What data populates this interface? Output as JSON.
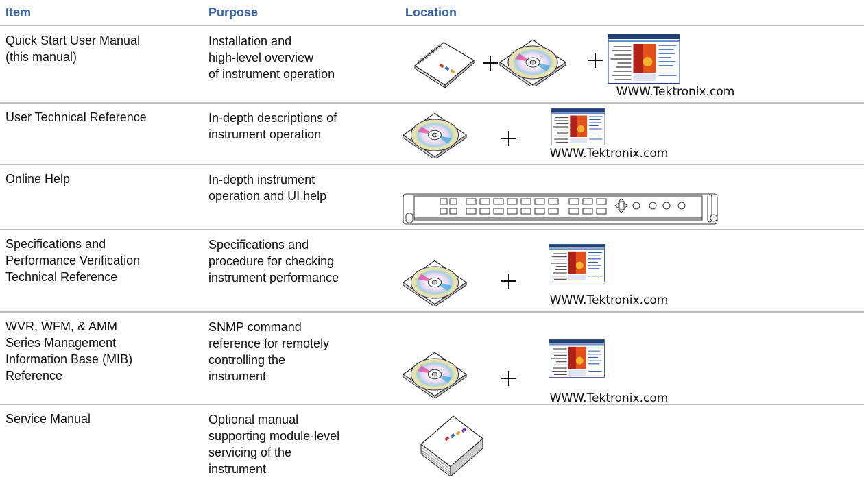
{
  "table": {
    "headers": [
      "Item",
      "Purpose",
      "Location"
    ],
    "rows": [
      {
        "item": [
          "Quick Start User Manual",
          "(this manual)"
        ],
        "purpose": [
          "Installation and",
          "high-level overview",
          "of instrument operation"
        ],
        "caption": "WWW.Tektronix.com"
      },
      {
        "item": [
          "User Technical Reference"
        ],
        "purpose": [
          "In-depth descriptions of",
          "instrument operation"
        ],
        "caption": "WWW.Tektronix.com"
      },
      {
        "item": [
          "Online Help"
        ],
        "purpose": [
          "In-depth instrument",
          "operation and UI help"
        ]
      },
      {
        "item": [
          "Specifications and",
          "Performance Verification",
          "Technical Reference"
        ],
        "purpose": [
          "Specifications and",
          "procedure for checking",
          "instrument performance"
        ],
        "caption": "WWW.Tektronix.com"
      },
      {
        "item": [
          "WVR, WFM, & AMM",
          "Series Management",
          "Information Base (MIB)",
          "Reference"
        ],
        "purpose": [
          "SNMP command",
          "reference for remotely",
          "controlling the",
          "instrument"
        ],
        "caption": "WWW.Tektronix.com"
      },
      {
        "item": [
          "Service Manual"
        ],
        "purpose": [
          "Optional manual",
          "supporting module-level",
          "servicing of the",
          "instrument"
        ]
      }
    ]
  }
}
